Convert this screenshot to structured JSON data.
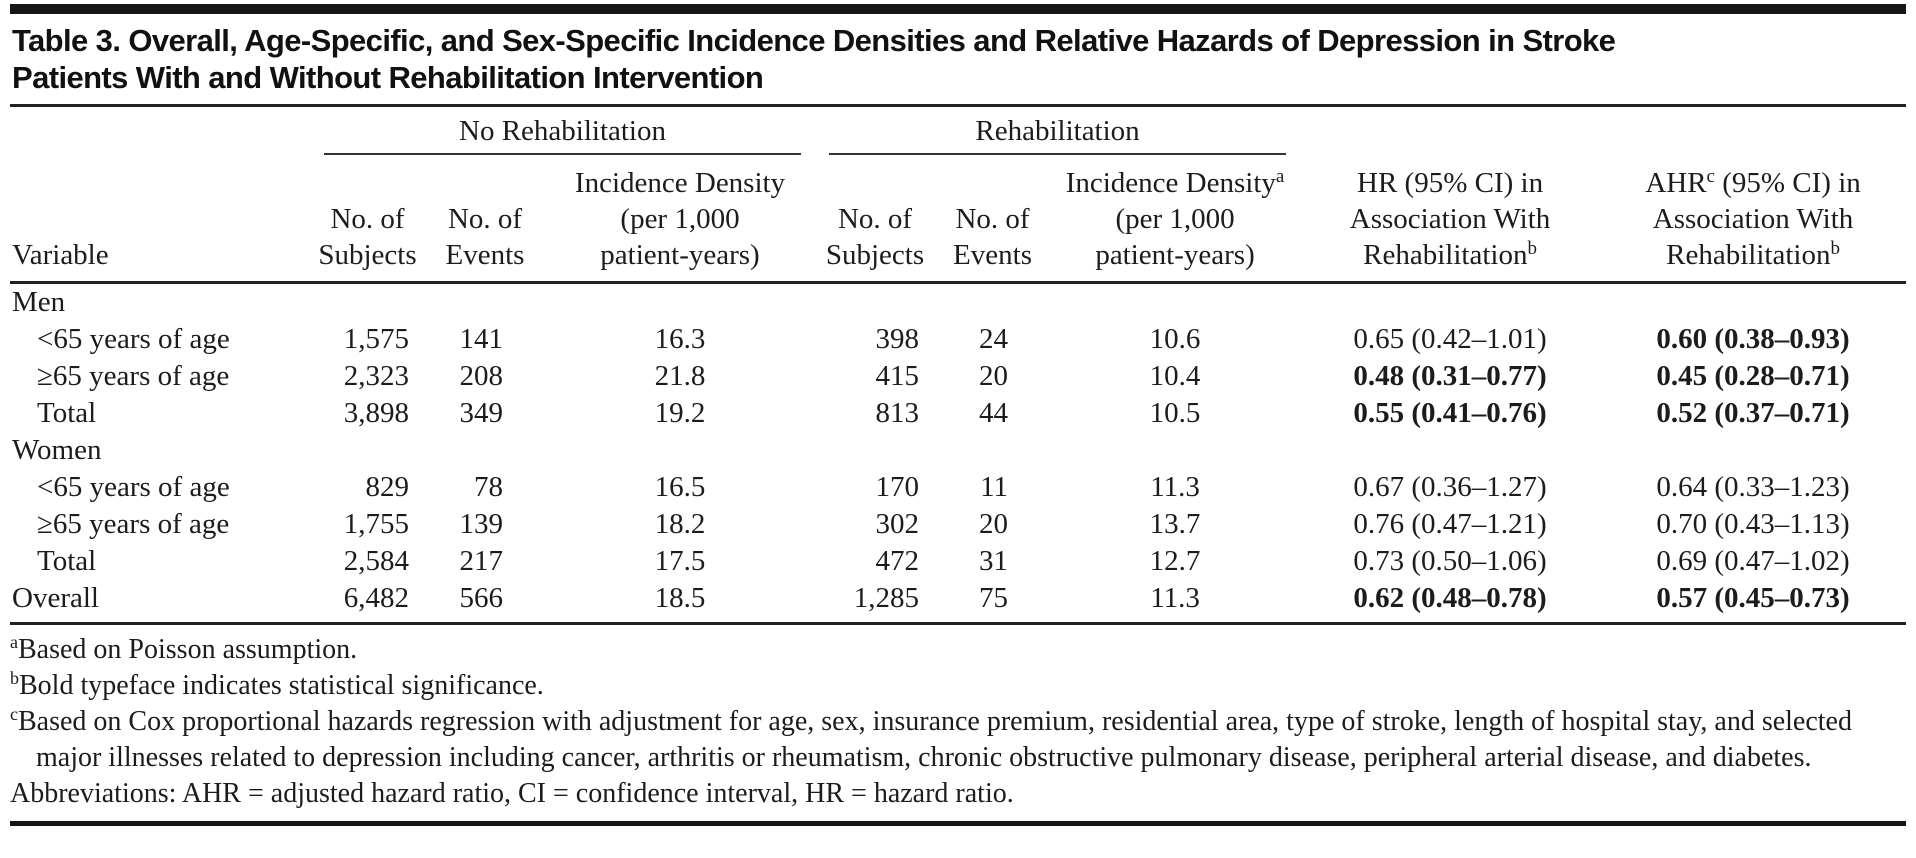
{
  "title": {
    "line1": "Table 3. Overall, Age-Specific, and Sex-Specific Incidence Densities and Relative Hazards of Depression in Stroke",
    "line2": "Patients With and Without Rehabilitation Intervention"
  },
  "table": {
    "spanners": {
      "no_rehab": "No Rehabilitation",
      "rehab": "Rehabilitation"
    },
    "headers": {
      "variable": "Variable",
      "no_of": "No. of",
      "subjects": "Subjects",
      "events": "Events",
      "incidence_line1": "Incidence Density",
      "incidence_line2": "(per 1,000",
      "incidence_line3": "patient-years)",
      "sup_a": "a",
      "sup_b": "b",
      "sup_c": "c",
      "hr_line1": "HR (95% CI) in",
      "ahr_prefix": "AHR",
      "ahr_rest": " (95% CI) in",
      "assoc_line": "Association With",
      "rehab_line": "Rehabilitation"
    },
    "rows": [
      {
        "label": "Men",
        "type": "section"
      },
      {
        "label": "<65 years of age",
        "type": "data",
        "indent": true,
        "ns1": "1,575",
        "ne1": "141",
        "id1": "16.3",
        "ns2": "398",
        "ne2": "24",
        "id2": "10.6",
        "hr": "0.65 (0.42–1.01)",
        "hr_bold": false,
        "ahr": "0.60 (0.38–0.93)",
        "ahr_bold": true
      },
      {
        "label": "≥65 years of age",
        "type": "data",
        "indent": true,
        "ns1": "2,323",
        "ne1": "208",
        "id1": "21.8",
        "ns2": "415",
        "ne2": "20",
        "id2": "10.4",
        "hr": "0.48 (0.31–0.77)",
        "hr_bold": true,
        "ahr": "0.45 (0.28–0.71)",
        "ahr_bold": true
      },
      {
        "label": "Total",
        "type": "data",
        "indent": true,
        "ns1": "3,898",
        "ne1": "349",
        "id1": "19.2",
        "ns2": "813",
        "ne2": "44",
        "id2": "10.5",
        "hr": "0.55 (0.41–0.76)",
        "hr_bold": true,
        "ahr": "0.52 (0.37–0.71)",
        "ahr_bold": true
      },
      {
        "label": "Women",
        "type": "section"
      },
      {
        "label": "<65 years of age",
        "type": "data",
        "indent": true,
        "ns1": "829",
        "ne1": "78",
        "id1": "16.5",
        "ns2": "170",
        "ne2": "11",
        "id2": "11.3",
        "hr": "0.67 (0.36–1.27)",
        "hr_bold": false,
        "ahr": "0.64 (0.33–1.23)",
        "ahr_bold": false
      },
      {
        "label": "≥65 years of age",
        "type": "data",
        "indent": true,
        "ns1": "1,755",
        "ne1": "139",
        "id1": "18.2",
        "ns2": "302",
        "ne2": "20",
        "id2": "13.7",
        "hr": "0.76 (0.47–1.21)",
        "hr_bold": false,
        "ahr": "0.70 (0.43–1.13)",
        "ahr_bold": false
      },
      {
        "label": "Total",
        "type": "data",
        "indent": true,
        "ns1": "2,584",
        "ne1": "217",
        "id1": "17.5",
        "ns2": "472",
        "ne2": "31",
        "id2": "12.7",
        "hr": "0.73 (0.50–1.06)",
        "hr_bold": false,
        "ahr": "0.69 (0.47–1.02)",
        "ahr_bold": false
      },
      {
        "label": "Overall",
        "type": "data",
        "indent": false,
        "ns1": "6,482",
        "ne1": "566",
        "id1": "18.5",
        "ns2": "1,285",
        "ne2": "75",
        "id2": "11.3",
        "hr": "0.62 (0.48–0.78)",
        "hr_bold": true,
        "ahr": "0.57 (0.45–0.73)",
        "ahr_bold": true
      }
    ]
  },
  "footnotes": {
    "a_sup": "a",
    "a_text": "Based on Poisson assumption.",
    "b_sup": "b",
    "b_text": "Bold typeface indicates statistical significance.",
    "c_sup": "c",
    "c_text": "Based on Cox proportional hazards regression with adjustment for age, sex, insurance premium, residential area, type of stroke, length of hospital stay, and selected major illnesses related to depression including cancer, arthritis or rheumatism, chronic obstructive pulmonary disease, peripheral arterial disease, and diabetes.",
    "abbreviations": "Abbreviations: AHR = adjusted hazard ratio, CI = confidence interval, HR = hazard ratio."
  },
  "colors": {
    "text": "#1c1c1c",
    "rule": "#161616",
    "background": "#ffffff"
  }
}
